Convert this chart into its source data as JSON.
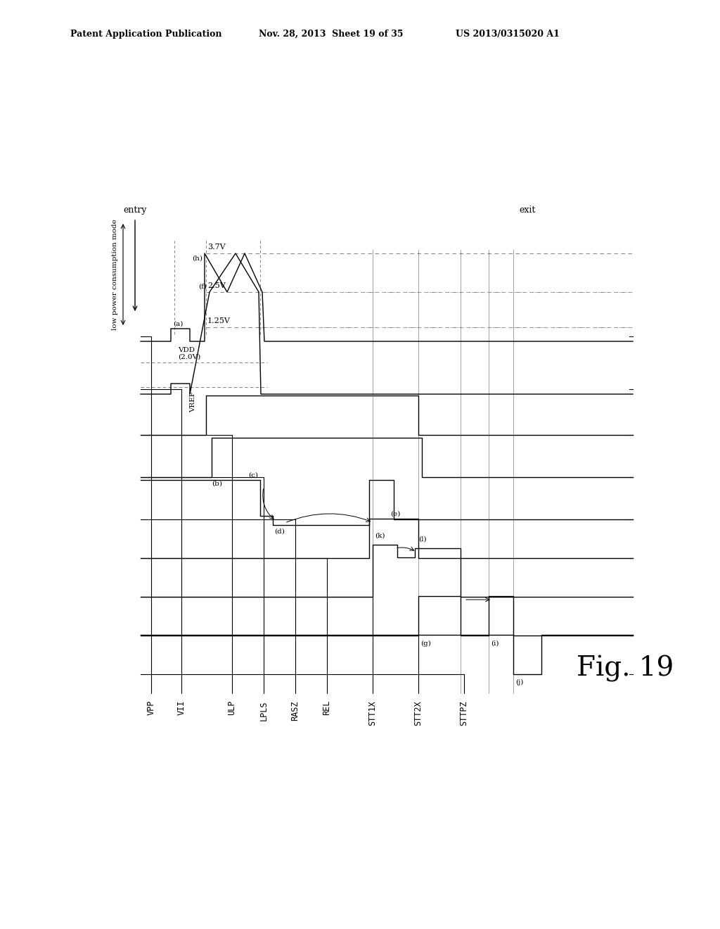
{
  "title_line1": "Patent Application Publication",
  "title_line2": "Nov. 28, 2013  Sheet 19 of 35",
  "title_line3": "US 2013/0315020 A1",
  "fig_label": "Fig. 19",
  "signals": [
    "VPP",
    "VII",
    "ULP",
    "LPLS",
    "RASZ",
    "REL",
    "STT1X",
    "STT2X",
    "STTPZ"
  ],
  "voltage_labels": [
    "3.7V",
    "2.5V",
    "1.25V"
  ],
  "entry_label": "entry",
  "exit_label": "exit",
  "low_power_label": "low power consumption mode",
  "vdd_label": "VDD\n(2.0V)",
  "vref_label": "VREF",
  "annotations": [
    "(a)",
    "(b)",
    "(c)",
    "(d)",
    "(e)",
    "(f)",
    "(g)",
    "(h)",
    "(i)",
    "(j)",
    "(k)",
    "(l)"
  ],
  "bg_color": "#ffffff",
  "line_color": "#000000"
}
